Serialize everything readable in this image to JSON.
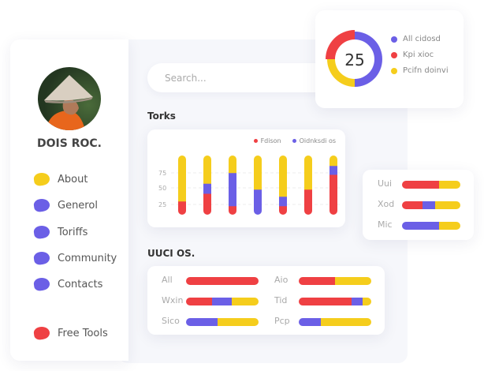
{
  "colors": {
    "red": "#ef4043",
    "purple": "#6b5fe6",
    "yellow": "#f5cd1c"
  },
  "profile": {
    "name": "DOIS ROC."
  },
  "nav": [
    {
      "label": "About",
      "icon": "yellow-blob-icon",
      "color": "#f5cd1c"
    },
    {
      "label": "Generol",
      "icon": "purple-blob-icon",
      "color": "#6b5fe6"
    },
    {
      "label": "Toriffs",
      "icon": "purple-blob-icon",
      "color": "#6b5fe6"
    },
    {
      "label": "Community",
      "icon": "purple-blob-icon",
      "color": "#6b5fe6"
    },
    {
      "label": "Contacts",
      "icon": "purple-blob-icon",
      "color": "#6b5fe6"
    },
    {
      "label": "Free Tools",
      "icon": "red-blob-icon",
      "color": "#ef4043"
    }
  ],
  "search": {
    "placeholder": "Search..."
  },
  "donut": {
    "center_value": "25",
    "legend": [
      {
        "label": "All cidosd",
        "color": "#6b5fe6",
        "value": 50
      },
      {
        "label": "Kpi xioc",
        "color": "#ef4043",
        "value": 25
      },
      {
        "label": "Pcifn doinvi",
        "color": "#f5cd1c",
        "value": 25
      }
    ]
  },
  "chart_data": [
    {
      "type": "bar",
      "title": "Torks",
      "stacked": true,
      "legend": [
        {
          "name": "Fdison",
          "color": "#ef4043"
        },
        {
          "name": "Oidnksdi os",
          "color": "#6b5fe6"
        }
      ],
      "yticks": [
        "75",
        "50",
        "25"
      ],
      "bars": [
        {
          "red": 23,
          "purple": 0,
          "yellow": 77
        },
        {
          "red": 36,
          "purple": 17,
          "yellow": 47
        },
        {
          "red": 15,
          "purple": 56,
          "yellow": 29
        },
        {
          "red": 0,
          "purple": 43,
          "yellow": 57
        },
        {
          "red": 15,
          "purple": 16,
          "yellow": 69
        },
        {
          "red": 43,
          "purple": 0,
          "yellow": 57
        },
        {
          "red": 68,
          "purple": 15,
          "yellow": 17
        }
      ]
    },
    {
      "type": "bar",
      "orientation": "horizontal",
      "stacked": true,
      "title": "UUCI OS.",
      "rows": [
        {
          "label": "All",
          "red": 100,
          "purple": 0,
          "yellow": 0
        },
        {
          "label": "Wxin",
          "red": 36,
          "purple": 27,
          "yellow": 37
        },
        {
          "label": "Sico",
          "red": 0,
          "purple": 43,
          "yellow": 57
        },
        {
          "label": "Aio",
          "red": 50,
          "purple": 0,
          "yellow": 50
        },
        {
          "label": "Tid",
          "red": 73,
          "purple": 15,
          "yellow": 12
        },
        {
          "label": "Pcp",
          "red": 0,
          "purple": 30,
          "yellow": 70
        }
      ]
    },
    {
      "type": "bar",
      "orientation": "horizontal",
      "stacked": true,
      "rows": [
        {
          "label": "Uui",
          "red": 64,
          "purple": 0,
          "yellow": 36
        },
        {
          "label": "Xod",
          "red": 35,
          "purple": 22,
          "yellow": 43
        },
        {
          "label": "Mic",
          "red": 0,
          "purple": 64,
          "yellow": 36
        }
      ]
    }
  ]
}
